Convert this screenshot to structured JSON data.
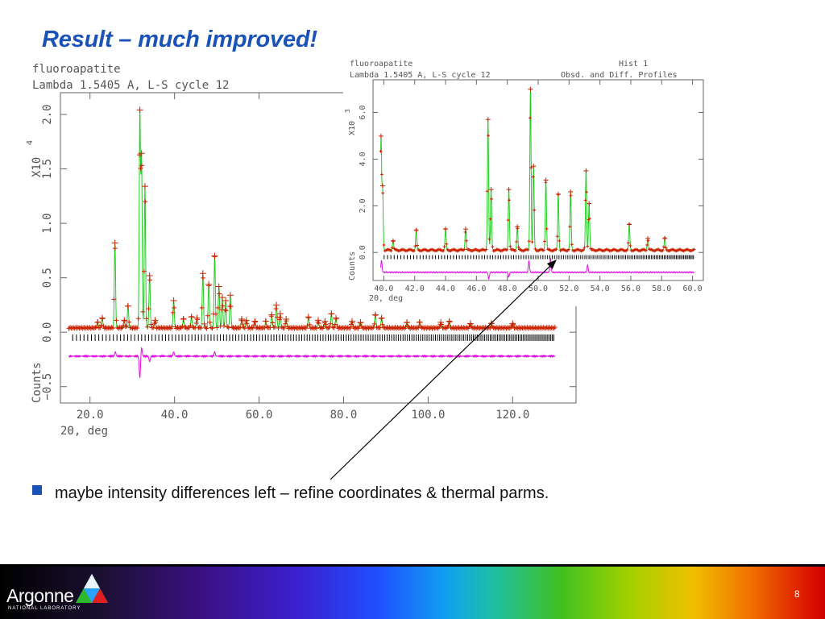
{
  "slide": {
    "title": "Result – much improved!",
    "bullet": "maybe intensity differences left – refine coordinates & thermal parms.",
    "logo_main": "Argonne",
    "logo_sub": "NATIONAL LABORATORY",
    "page_number": "8"
  },
  "colors": {
    "title": "#1a52b8",
    "observed": "#cc2200",
    "calculated": "#22cc22",
    "difference": "#e010e0",
    "ticks": "#000000"
  },
  "chart_data": [
    {
      "type": "line",
      "header_line1": "fluoroapatite",
      "header_line2": "Lambda 1.5405 A, L-S cycle   12",
      "ylabel": "Counts",
      "yscale_label": "X10",
      "yscale_exp": "4",
      "xlabel": "2Θ, deg",
      "xlim": [
        13,
        135
      ],
      "ylim": [
        -0.65,
        2.2
      ],
      "xticks": [
        "20.0",
        "40.0",
        "60.0",
        "80.0",
        "100.0",
        "120.0"
      ],
      "yticks": [
        "−0.5",
        "0.0",
        "0.5",
        "1.0",
        "1.5",
        "2.0"
      ],
      "range": [
        15,
        130
      ],
      "baseline": 0.04,
      "peaks": [
        {
          "x": 21.8,
          "h": 0.05
        },
        {
          "x": 22.9,
          "h": 0.09
        },
        {
          "x": 25.9,
          "h": 0.78
        },
        {
          "x": 28.1,
          "h": 0.07
        },
        {
          "x": 29.0,
          "h": 0.2
        },
        {
          "x": 31.8,
          "h": 1.96
        },
        {
          "x": 32.2,
          "h": 1.55
        },
        {
          "x": 33.0,
          "h": 1.3
        },
        {
          "x": 34.1,
          "h": 0.48
        },
        {
          "x": 35.4,
          "h": 0.07
        },
        {
          "x": 39.8,
          "h": 0.25
        },
        {
          "x": 42.1,
          "h": 0.08
        },
        {
          "x": 44.0,
          "h": 0.1
        },
        {
          "x": 45.3,
          "h": 0.09
        },
        {
          "x": 46.7,
          "h": 0.5
        },
        {
          "x": 48.1,
          "h": 0.4
        },
        {
          "x": 49.5,
          "h": 0.66
        },
        {
          "x": 50.5,
          "h": 0.38
        },
        {
          "x": 51.3,
          "h": 0.28
        },
        {
          "x": 52.1,
          "h": 0.25
        },
        {
          "x": 53.2,
          "h": 0.3
        },
        {
          "x": 55.9,
          "h": 0.08
        },
        {
          "x": 57.0,
          "h": 0.07
        },
        {
          "x": 59.0,
          "h": 0.06
        },
        {
          "x": 61.6,
          "h": 0.06
        },
        {
          "x": 63.0,
          "h": 0.12
        },
        {
          "x": 64.1,
          "h": 0.21
        },
        {
          "x": 65.0,
          "h": 0.13
        },
        {
          "x": 66.4,
          "h": 0.08
        },
        {
          "x": 71.7,
          "h": 0.1
        },
        {
          "x": 74.0,
          "h": 0.07
        },
        {
          "x": 75.6,
          "h": 0.06
        },
        {
          "x": 77.1,
          "h": 0.13
        },
        {
          "x": 78.2,
          "h": 0.09
        },
        {
          "x": 82.0,
          "h": 0.06
        },
        {
          "x": 84.0,
          "h": 0.05
        },
        {
          "x": 87.5,
          "h": 0.12
        },
        {
          "x": 89.0,
          "h": 0.09
        },
        {
          "x": 95.0,
          "h": 0.05
        },
        {
          "x": 98.0,
          "h": 0.05
        },
        {
          "x": 103.0,
          "h": 0.05
        },
        {
          "x": 105.0,
          "h": 0.06
        },
        {
          "x": 110.0,
          "h": 0.04
        },
        {
          "x": 115.0,
          "h": 0.04
        },
        {
          "x": 120.0,
          "h": 0.04
        }
      ],
      "difference_level": -0.22,
      "difference_spikes": [
        {
          "x": 31.8,
          "h": -0.2
        },
        {
          "x": 32.2,
          "h": 0.08
        },
        {
          "x": 26.0,
          "h": 0.04
        },
        {
          "x": 34.1,
          "h": -0.05
        },
        {
          "x": 39.8,
          "h": 0.04
        },
        {
          "x": 49.5,
          "h": 0.04
        }
      ],
      "tick_level": -0.05
    },
    {
      "type": "line",
      "header_line1": "fluoroapatite",
      "header_line2": "Lambda 1.5405 A, L-S cycle   12",
      "hist_label": "Hist   1",
      "profile_label": "Obsd. and Diff. Profiles",
      "ylabel": "Counts",
      "yscale_label": "X10",
      "yscale_exp": "3",
      "xlabel": "2Θ, deg",
      "xlim": [
        39.3,
        60.7
      ],
      "ylim": [
        -1.2,
        7.4
      ],
      "xticks": [
        "40.0",
        "42.0",
        "44.0",
        "46.0",
        "48.0",
        "50.0",
        "52.0",
        "54.0",
        "56.0",
        "58.0",
        "60.0"
      ],
      "yticks": [
        "0.0",
        "2.0",
        "4.0",
        "6.0"
      ],
      "range": [
        39.8,
        60.1
      ],
      "baseline": 0.1,
      "peaks": [
        {
          "x": 39.82,
          "h": 4.8
        },
        {
          "x": 39.92,
          "h": 2.6
        },
        {
          "x": 40.6,
          "h": 0.4
        },
        {
          "x": 42.1,
          "h": 0.85
        },
        {
          "x": 44.0,
          "h": 0.9
        },
        {
          "x": 45.3,
          "h": 0.9
        },
        {
          "x": 46.75,
          "h": 5.6
        },
        {
          "x": 46.95,
          "h": 2.6
        },
        {
          "x": 48.1,
          "h": 2.6
        },
        {
          "x": 48.65,
          "h": 1.0
        },
        {
          "x": 49.5,
          "h": 6.9
        },
        {
          "x": 49.7,
          "h": 3.6
        },
        {
          "x": 50.5,
          "h": 3.0
        },
        {
          "x": 51.3,
          "h": 2.4
        },
        {
          "x": 52.1,
          "h": 2.5
        },
        {
          "x": 53.1,
          "h": 3.4
        },
        {
          "x": 53.3,
          "h": 2.0
        },
        {
          "x": 55.9,
          "h": 1.1
        },
        {
          "x": 57.1,
          "h": 0.5
        },
        {
          "x": 58.2,
          "h": 0.5
        }
      ],
      "difference_level": -0.85,
      "difference_spikes": [
        {
          "x": 39.85,
          "h": 0.5
        },
        {
          "x": 46.8,
          "h": -0.3
        },
        {
          "x": 49.4,
          "h": 0.5
        },
        {
          "x": 50.8,
          "h": 0.6
        },
        {
          "x": 53.2,
          "h": 0.3
        },
        {
          "x": 48.1,
          "h": -0.2
        }
      ],
      "tick_level": -0.2
    }
  ]
}
